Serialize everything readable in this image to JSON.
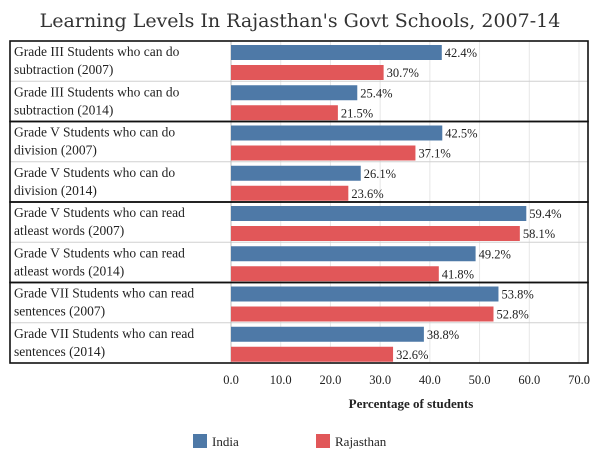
{
  "chart_data": {
    "type": "bar",
    "title": "Learning Levels In Rajasthan's Govt Schools, 2007-14",
    "xlabel": "Percentage of students",
    "ylabel": "",
    "xlim": [
      0,
      70
    ],
    "x_ticks": [
      "0.0",
      "10.0",
      "20.0",
      "30.0",
      "40.0",
      "50.0",
      "60.0",
      "70.0"
    ],
    "orientation": "horizontal",
    "grid": true,
    "legend_position": "bottom",
    "categories": [
      [
        "Grade III Students who can do",
        "subtraction (2007)"
      ],
      [
        "Grade III Students who can do",
        "subtraction (2014)"
      ],
      [
        "Grade V Students who can do",
        "division (2007)"
      ],
      [
        "Grade V Students who can do",
        "division (2014)"
      ],
      [
        "Grade V Students who can read",
        "atleast words (2007)"
      ],
      [
        "Grade V Students who can read",
        "atleast words (2014)"
      ],
      [
        "Grade VII Students who can read",
        "sentences (2007)"
      ],
      [
        "Grade VII Students who can read",
        "sentences (2014)"
      ]
    ],
    "series": [
      {
        "name": "India",
        "color": "#4e79a7",
        "values": [
          42.4,
          25.4,
          42.5,
          26.1,
          59.4,
          49.2,
          53.8,
          38.8
        ],
        "labels": [
          "42.4%",
          "25.4%",
          "42.5%",
          "26.1%",
          "59.4%",
          "49.2%",
          "53.8%",
          "38.8%"
        ]
      },
      {
        "name": "Rajasthan",
        "color": "#e15759",
        "values": [
          30.7,
          21.5,
          37.1,
          23.6,
          58.1,
          41.8,
          52.8,
          32.6
        ],
        "labels": [
          "30.7%",
          "21.5%",
          "37.1%",
          "23.6%",
          "58.1%",
          "41.8%",
          "52.8%",
          "32.6%"
        ]
      }
    ]
  }
}
